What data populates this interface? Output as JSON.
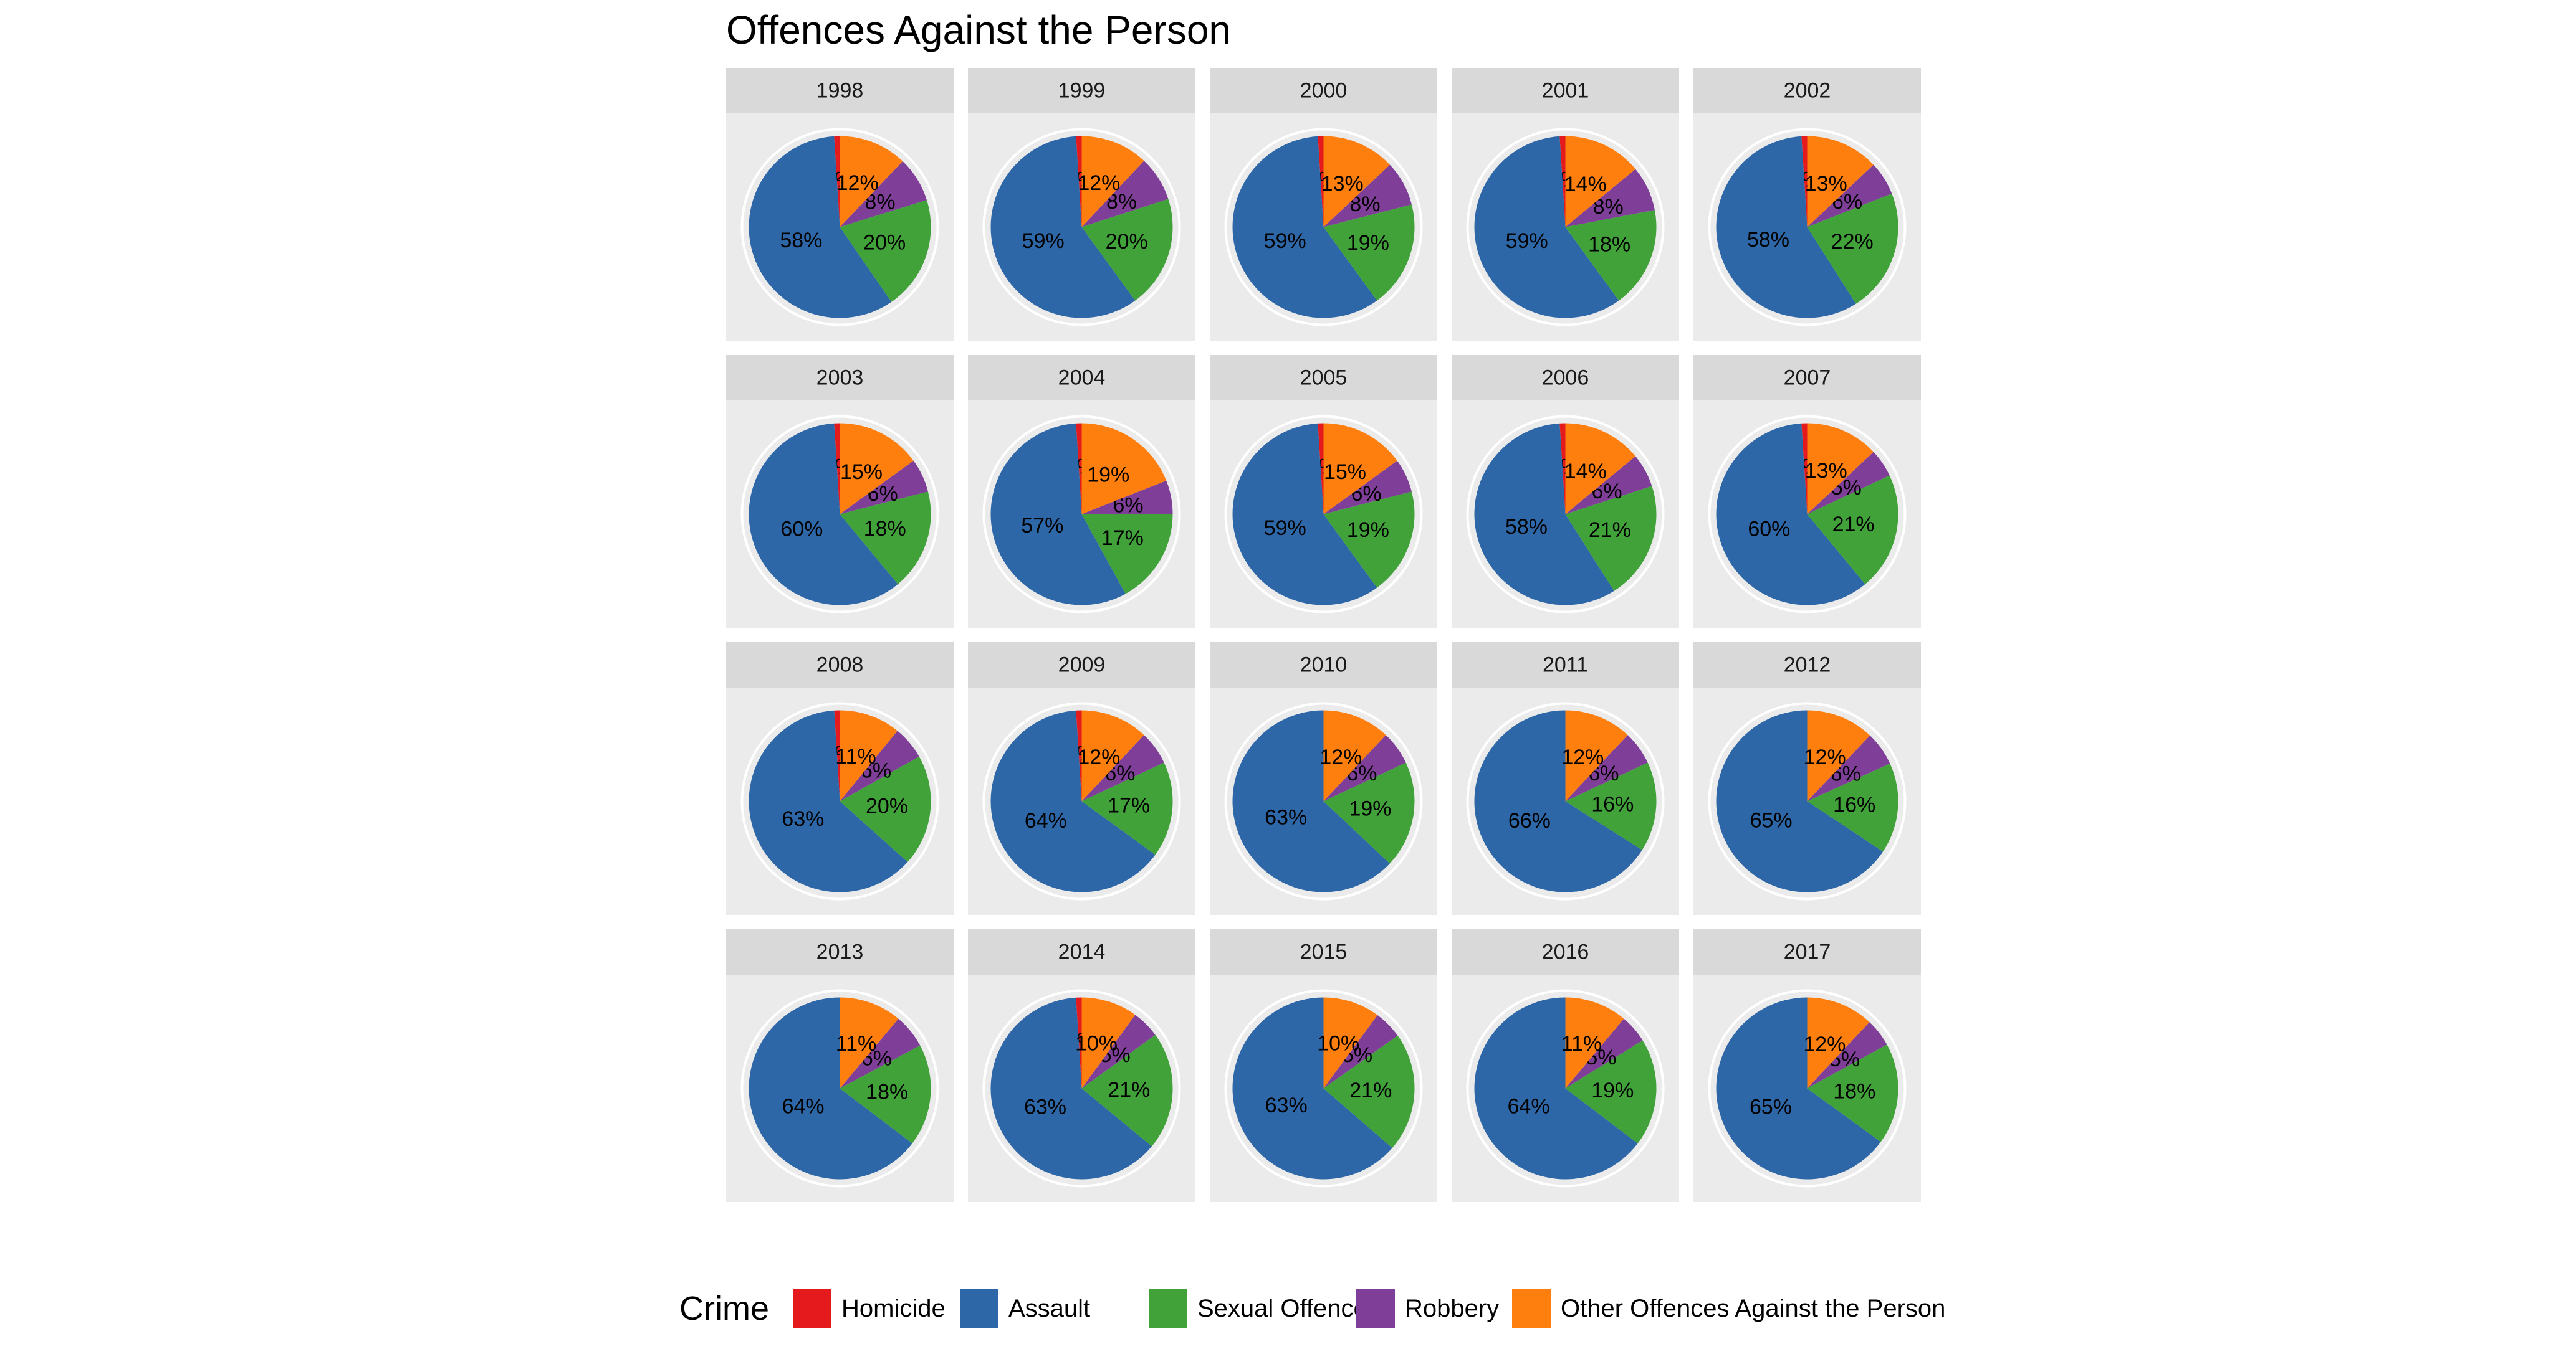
{
  "chart_data": {
    "type": "pie",
    "title": "Offences Against the Person",
    "legend": {
      "title": "Crime",
      "placement": "bottom"
    },
    "categories": [
      "Homicide",
      "Assault",
      "Sexual Offences",
      "Robbery",
      "Other Offences Against the Person"
    ],
    "colors": {
      "Homicide": "#e41a1c",
      "Assault": "#2e67a8",
      "Sexual Offences": "#41a23a",
      "Robbery": "#7f3f98",
      "Other Offences Against the Person": "#ff7f0e"
    },
    "panels": [
      {
        "year": "1998",
        "values": {
          "Homicide": 1,
          "Assault": 58,
          "Sexual Offences": 20,
          "Robbery": 8,
          "Other Offences Against the Person": 12
        }
      },
      {
        "year": "1999",
        "values": {
          "Homicide": 1,
          "Assault": 59,
          "Sexual Offences": 20,
          "Robbery": 8,
          "Other Offences Against the Person": 12
        }
      },
      {
        "year": "2000",
        "values": {
          "Homicide": 1,
          "Assault": 59,
          "Sexual Offences": 19,
          "Robbery": 8,
          "Other Offences Against the Person": 13
        }
      },
      {
        "year": "2001",
        "values": {
          "Homicide": 1,
          "Assault": 59,
          "Sexual Offences": 18,
          "Robbery": 8,
          "Other Offences Against the Person": 14
        }
      },
      {
        "year": "2002",
        "values": {
          "Homicide": 1,
          "Assault": 58,
          "Sexual Offences": 22,
          "Robbery": 6,
          "Other Offences Against the Person": 13
        }
      },
      {
        "year": "2003",
        "values": {
          "Homicide": 1,
          "Assault": 60,
          "Sexual Offences": 18,
          "Robbery": 6,
          "Other Offences Against the Person": 15
        }
      },
      {
        "year": "2004",
        "values": {
          "Homicide": 1,
          "Assault": 57,
          "Sexual Offences": 17,
          "Robbery": 6,
          "Other Offences Against the Person": 19
        }
      },
      {
        "year": "2005",
        "values": {
          "Homicide": 1,
          "Assault": 59,
          "Sexual Offences": 19,
          "Robbery": 6,
          "Other Offences Against the Person": 15
        }
      },
      {
        "year": "2006",
        "values": {
          "Homicide": 1,
          "Assault": 58,
          "Sexual Offences": 21,
          "Robbery": 6,
          "Other Offences Against the Person": 14
        }
      },
      {
        "year": "2007",
        "values": {
          "Homicide": 1,
          "Assault": 60,
          "Sexual Offences": 21,
          "Robbery": 5,
          "Other Offences Against the Person": 13
        }
      },
      {
        "year": "2008",
        "values": {
          "Homicide": 1,
          "Assault": 63,
          "Sexual Offences": 20,
          "Robbery": 6,
          "Other Offences Against the Person": 11
        }
      },
      {
        "year": "2009",
        "values": {
          "Homicide": 1,
          "Assault": 64,
          "Sexual Offences": 17,
          "Robbery": 6,
          "Other Offences Against the Person": 12
        }
      },
      {
        "year": "2010",
        "values": {
          "Homicide": 0,
          "Assault": 63,
          "Sexual Offences": 19,
          "Robbery": 6,
          "Other Offences Against the Person": 12
        }
      },
      {
        "year": "2011",
        "values": {
          "Homicide": 0,
          "Assault": 66,
          "Sexual Offences": 16,
          "Robbery": 6,
          "Other Offences Against the Person": 12
        }
      },
      {
        "year": "2012",
        "values": {
          "Homicide": 0,
          "Assault": 65,
          "Sexual Offences": 16,
          "Robbery": 6,
          "Other Offences Against the Person": 12
        }
      },
      {
        "year": "2013",
        "values": {
          "Homicide": 0,
          "Assault": 64,
          "Sexual Offences": 18,
          "Robbery": 6,
          "Other Offences Against the Person": 11
        }
      },
      {
        "year": "2014",
        "values": {
          "Homicide": 1,
          "Assault": 63,
          "Sexual Offences": 21,
          "Robbery": 5,
          "Other Offences Against the Person": 10
        }
      },
      {
        "year": "2015",
        "values": {
          "Homicide": 0,
          "Assault": 63,
          "Sexual Offences": 21,
          "Robbery": 5,
          "Other Offences Against the Person": 10
        }
      },
      {
        "year": "2016",
        "values": {
          "Homicide": 0,
          "Assault": 64,
          "Sexual Offences": 19,
          "Robbery": 5,
          "Other Offences Against the Person": 11
        }
      },
      {
        "year": "2017",
        "values": {
          "Homicide": 0,
          "Assault": 65,
          "Sexual Offences": 18,
          "Robbery": 5,
          "Other Offences Against the Person": 12
        }
      }
    ]
  }
}
